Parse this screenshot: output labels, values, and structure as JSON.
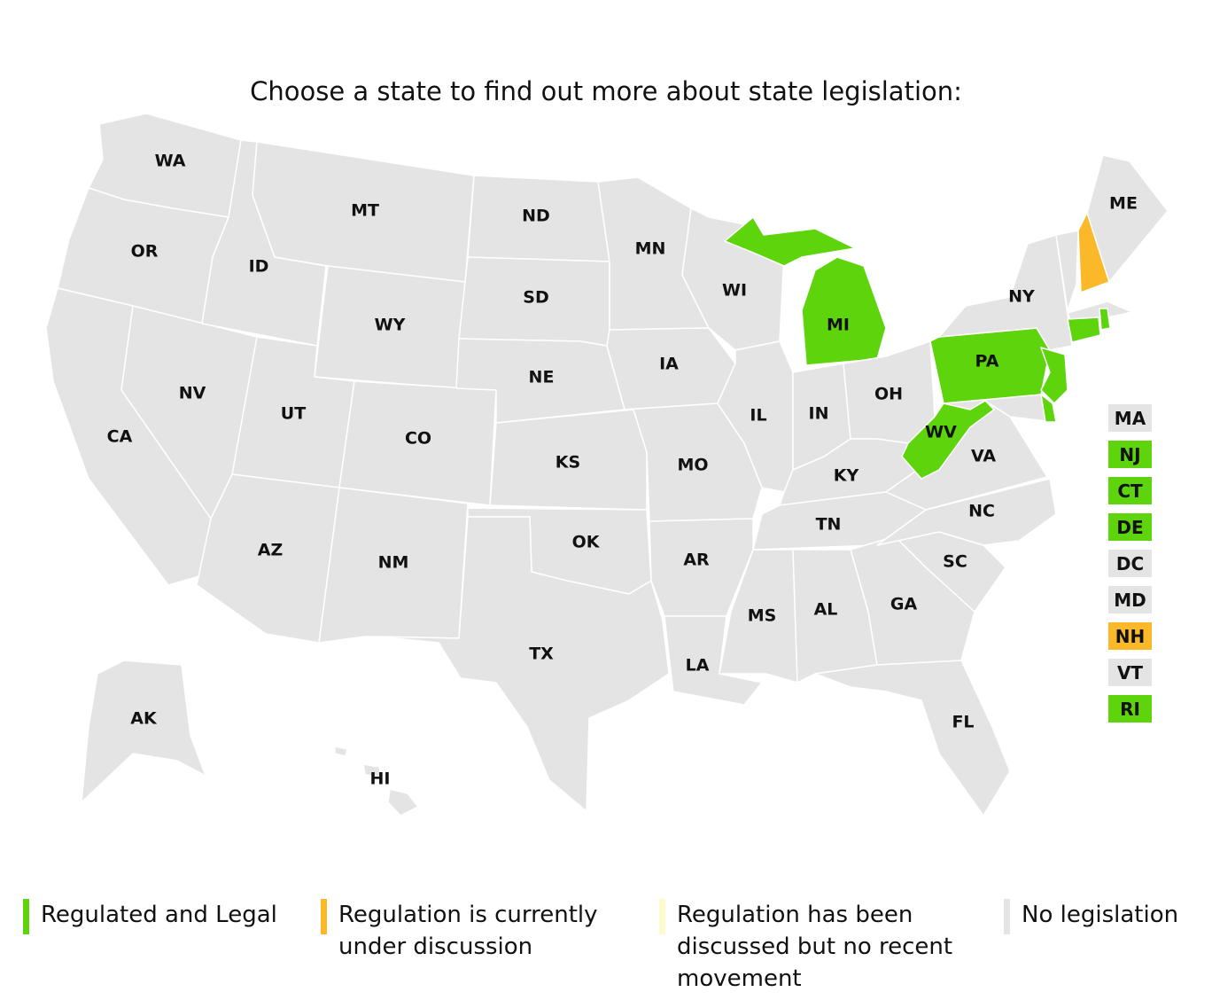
{
  "title": "Choose a state to find out more about state legislation:",
  "colors": {
    "regulated": "#5dd40c",
    "discussion": "#fbb829",
    "stalled": "#fdfbcb",
    "none": "#e4e4e4"
  },
  "states": {
    "WA": {
      "label": "WA",
      "status": "none"
    },
    "OR": {
      "label": "OR",
      "status": "none"
    },
    "CA": {
      "label": "CA",
      "status": "none"
    },
    "NV": {
      "label": "NV",
      "status": "none"
    },
    "ID": {
      "label": "ID",
      "status": "none"
    },
    "MT": {
      "label": "MT",
      "status": "none"
    },
    "WY": {
      "label": "WY",
      "status": "none"
    },
    "UT": {
      "label": "UT",
      "status": "none"
    },
    "CO": {
      "label": "CO",
      "status": "none"
    },
    "AZ": {
      "label": "AZ",
      "status": "none"
    },
    "NM": {
      "label": "NM",
      "status": "none"
    },
    "ND": {
      "label": "ND",
      "status": "none"
    },
    "SD": {
      "label": "SD",
      "status": "none"
    },
    "NE": {
      "label": "NE",
      "status": "none"
    },
    "KS": {
      "label": "KS",
      "status": "none"
    },
    "OK": {
      "label": "OK",
      "status": "none"
    },
    "TX": {
      "label": "TX",
      "status": "none"
    },
    "MN": {
      "label": "MN",
      "status": "none"
    },
    "IA": {
      "label": "IA",
      "status": "none"
    },
    "MO": {
      "label": "MO",
      "status": "none"
    },
    "AR": {
      "label": "AR",
      "status": "none"
    },
    "LA": {
      "label": "LA",
      "status": "none"
    },
    "WI": {
      "label": "WI",
      "status": "none"
    },
    "IL": {
      "label": "IL",
      "status": "none"
    },
    "MI": {
      "label": "MI",
      "status": "regulated"
    },
    "IN": {
      "label": "IN",
      "status": "none"
    },
    "OH": {
      "label": "OH",
      "status": "none"
    },
    "KY": {
      "label": "KY",
      "status": "none"
    },
    "TN": {
      "label": "TN",
      "status": "none"
    },
    "MS": {
      "label": "MS",
      "status": "none"
    },
    "AL": {
      "label": "AL",
      "status": "none"
    },
    "GA": {
      "label": "GA",
      "status": "none"
    },
    "FL": {
      "label": "FL",
      "status": "none"
    },
    "SC": {
      "label": "SC",
      "status": "none"
    },
    "NC": {
      "label": "NC",
      "status": "none"
    },
    "VA": {
      "label": "VA",
      "status": "none"
    },
    "WV": {
      "label": "WV",
      "status": "regulated"
    },
    "PA": {
      "label": "PA",
      "status": "regulated"
    },
    "NY": {
      "label": "NY",
      "status": "none"
    },
    "ME": {
      "label": "ME",
      "status": "none"
    },
    "AK": {
      "label": "AK",
      "status": "none"
    },
    "HI": {
      "label": "HI",
      "status": "none"
    },
    "NJ": {
      "label": "NJ",
      "status": "regulated"
    },
    "CT": {
      "label": "CT",
      "status": "regulated"
    },
    "DE": {
      "label": "DE",
      "status": "regulated"
    },
    "MA": {
      "label": "MA",
      "status": "none"
    },
    "DC": {
      "label": "DC",
      "status": "none"
    },
    "MD": {
      "label": "MD",
      "status": "none"
    },
    "NH": {
      "label": "NH",
      "status": "discussion"
    },
    "VT": {
      "label": "VT",
      "status": "none"
    },
    "RI": {
      "label": "RI",
      "status": "regulated"
    }
  },
  "small_states": [
    "MA",
    "NJ",
    "CT",
    "DE",
    "DC",
    "MD",
    "NH",
    "VT",
    "RI"
  ],
  "legend": [
    {
      "key": "regulated",
      "label": "Regulated and Legal"
    },
    {
      "key": "discussion",
      "label": "Regulation is currently under discussion"
    },
    {
      "key": "stalled",
      "label": "Regulation has been discussed but no recent movement"
    },
    {
      "key": "none",
      "label": "No legislation"
    }
  ]
}
